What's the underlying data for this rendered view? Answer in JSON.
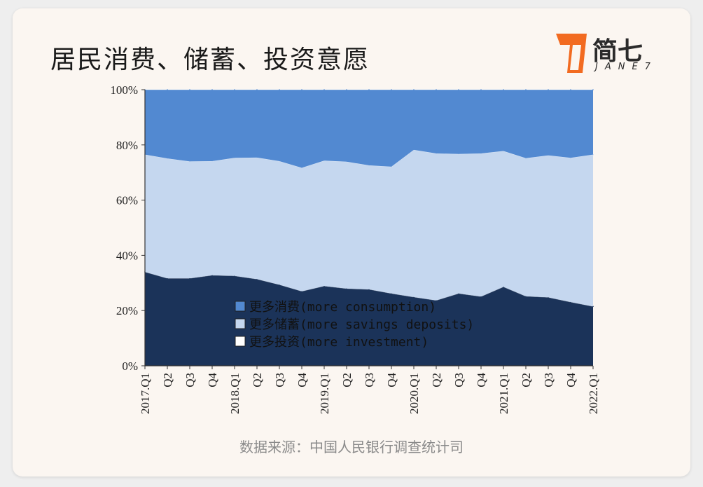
{
  "header": {
    "title": "居民消费、储蓄、投资意愿",
    "logo_text": "简七",
    "logo_sub": "JANE7"
  },
  "source": "数据来源：中国人民银行调查统计司",
  "chart_data": {
    "type": "area",
    "stacked": true,
    "title": "",
    "xlabel": "",
    "ylabel": "",
    "ylim": [
      0,
      100
    ],
    "y_ticks": [
      "0%",
      "20%",
      "40%",
      "60%",
      "80%",
      "100%"
    ],
    "x": [
      "2017.Q1",
      "Q2",
      "Q3",
      "Q4",
      "2018.Q1",
      "Q2",
      "Q3",
      "Q4",
      "2019.Q1",
      "Q2",
      "Q3",
      "Q4",
      "2020.Q1",
      "Q2",
      "Q3",
      "Q4",
      "2021.Q1",
      "Q2",
      "Q3",
      "Q4",
      "2022.Q1"
    ],
    "legend": {
      "placement": "bottom-center"
    },
    "series": [
      {
        "name": "更多投资(more investment)",
        "color": "#1b3359",
        "values": [
          34.0,
          31.7,
          31.7,
          32.8,
          32.6,
          31.4,
          29.4,
          27.0,
          28.9,
          28.0,
          27.7,
          26.2,
          24.9,
          23.7,
          26.2,
          25.1,
          28.6,
          25.2,
          24.8,
          23.1,
          21.5
        ]
      },
      {
        "name": "更多储蓄(more savings deposits)",
        "color": "#c5d7ef",
        "values": [
          42.5,
          43.4,
          42.3,
          41.3,
          42.7,
          44.0,
          44.7,
          44.7,
          45.4,
          45.9,
          44.9,
          45.9,
          53.3,
          53.2,
          50.5,
          51.8,
          49.2,
          50.0,
          51.4,
          52.2,
          55.0
        ]
      },
      {
        "name": "更多消费(more consumption)",
        "color": "#5289d1",
        "values": [
          23.5,
          24.9,
          26.0,
          25.9,
          24.7,
          24.6,
          25.9,
          28.3,
          25.7,
          26.1,
          27.4,
          27.9,
          21.8,
          23.1,
          23.3,
          23.1,
          22.2,
          24.8,
          23.8,
          24.7,
          23.5
        ]
      }
    ],
    "legend_entries": [
      {
        "label": "更多消费(more consumption)",
        "color": "#5289d1"
      },
      {
        "label": "更多储蓄(more savings deposits)",
        "color": "#c5d7ef"
      },
      {
        "label": "更多投资(more investment)",
        "color": "#ffffff"
      }
    ]
  }
}
